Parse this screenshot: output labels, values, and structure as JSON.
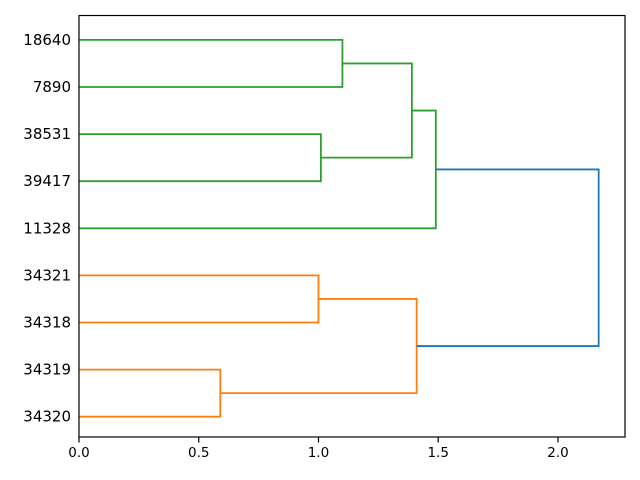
{
  "figure": {
    "background": "#ffffff",
    "kind": "dendrogram-plot"
  },
  "chart_data": {
    "type": "dendrogram",
    "orientation": "right",
    "note": "hierarchical clustering dendrogram; leaf labels on left, merge distance on x-axis",
    "leaves": [
      "18640",
      "7890",
      "38531",
      "39417",
      "11328",
      "34321",
      "34318",
      "34319",
      "34320"
    ],
    "links": [
      {
        "id": "A",
        "children": [
          "18640",
          "7890"
        ],
        "distance": 1.1,
        "color": "#2ca02c"
      },
      {
        "id": "B",
        "children": [
          "38531",
          "39417"
        ],
        "distance": 1.01,
        "color": "#2ca02c"
      },
      {
        "id": "C",
        "children": [
          "A",
          "B"
        ],
        "distance": 1.39,
        "color": "#2ca02c"
      },
      {
        "id": "D",
        "children": [
          "C",
          "11328"
        ],
        "distance": 1.49,
        "color": "#2ca02c"
      },
      {
        "id": "E",
        "children": [
          "34321",
          "34318"
        ],
        "distance": 1.0,
        "color": "#ff7f0e"
      },
      {
        "id": "F",
        "children": [
          "34319",
          "34320"
        ],
        "distance": 0.59,
        "color": "#ff7f0e"
      },
      {
        "id": "G",
        "children": [
          "E",
          "F"
        ],
        "distance": 1.41,
        "color": "#ff7f0e"
      },
      {
        "id": "ROOT",
        "children": [
          "D",
          "G"
        ],
        "distance": 2.17,
        "color": "#1f77b4"
      }
    ],
    "x_ticks": [
      "0.0",
      "0.5",
      "1.0",
      "1.5",
      "2.0"
    ],
    "xlim": [
      0,
      2.28
    ],
    "grid": false,
    "legend": null,
    "title": "",
    "colors": {
      "cluster_top": "#2ca02c",
      "cluster_bottom": "#ff7f0e",
      "root_link": "#1f77b4",
      "axes": "#000000",
      "background": "#ffffff"
    }
  }
}
